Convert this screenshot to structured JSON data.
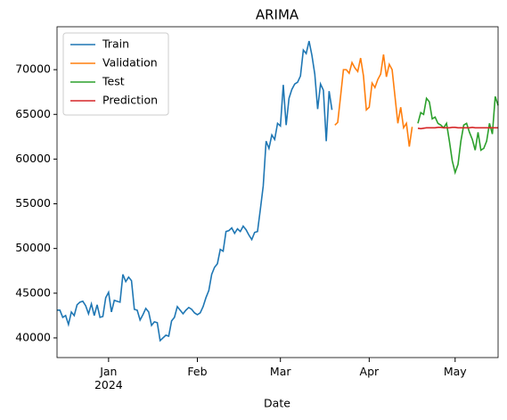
{
  "chart_data": {
    "type": "line",
    "title": "ARIMA",
    "x_label": "Date",
    "xlim": [
      19705,
      19859
    ],
    "xticks": [
      {
        "value": 19723,
        "label": "Jan\n2024"
      },
      {
        "value": 19754,
        "label": "Feb"
      },
      {
        "value": 19783,
        "label": "Mar"
      },
      {
        "value": 19814,
        "label": "Apr"
      },
      {
        "value": 19844,
        "label": "May"
      }
    ],
    "ylim": [
      37800,
      74800
    ],
    "yticks": [
      40000,
      45000,
      50000,
      55000,
      60000,
      65000,
      70000
    ],
    "grid": false,
    "legend": "upper left",
    "series": [
      {
        "name": "Train",
        "color": "#1f77b4",
        "start": 19705,
        "values": [
          43100,
          43100,
          42300,
          42500,
          41500,
          42900,
          42500,
          43700,
          44000,
          44100,
          43600,
          42700,
          43800,
          42500,
          43700,
          42300,
          42400,
          44500,
          45100,
          42900,
          44200,
          44100,
          44000,
          47100,
          46300,
          46800,
          46400,
          43200,
          43100,
          42000,
          42600,
          43300,
          42900,
          41400,
          41800,
          41700,
          39700,
          40000,
          40300,
          40200,
          41900,
          42300,
          43500,
          43100,
          42700,
          43100,
          43400,
          43200,
          42800,
          42600,
          42800,
          43500,
          44500,
          45300,
          47100,
          47900,
          48300,
          49900,
          49700,
          51900,
          52000,
          52300,
          51700,
          52200,
          51900,
          52500,
          52100,
          51500,
          51000,
          51800,
          51900,
          54400,
          57000,
          62000,
          61200,
          62700,
          62200,
          64000,
          63700,
          68300,
          63800,
          66800,
          67800,
          68400,
          68600,
          69300,
          72200,
          71800,
          73200,
          71600,
          69500,
          65600,
          68400,
          67700,
          62000,
          67600,
          65500
        ]
      },
      {
        "name": "Validation",
        "color": "#ff7f0e",
        "start": 19802,
        "values": [
          63800,
          64100,
          67000,
          70000,
          70000,
          69600,
          70800,
          70200,
          69800,
          71300,
          69300,
          65500,
          65800,
          68500,
          68000,
          68900,
          69500,
          71700,
          69200,
          70600,
          70000,
          67000,
          64000,
          65800,
          63500,
          64000,
          61400,
          63600
        ]
      },
      {
        "name": "Test",
        "color": "#2ca02c",
        "start": 19831,
        "values": [
          64000,
          65200,
          65000,
          66800,
          66400,
          64500,
          64700,
          64000,
          63800,
          63500,
          64000,
          62000,
          59800,
          58500,
          59400,
          62000,
          63800,
          64000,
          63000,
          62200,
          61000,
          63000,
          61000,
          61200,
          62000,
          64000,
          62800,
          67000,
          66000
        ]
      },
      {
        "name": "Prediction",
        "color": "#d62728",
        "start": 19831,
        "values": [
          63450,
          63400,
          63450,
          63500,
          63500,
          63500,
          63500,
          63550,
          63550,
          63500,
          63500,
          63500,
          63550,
          63550,
          63500,
          63500,
          63500,
          63500,
          63500,
          63550,
          63500,
          63500,
          63500,
          63500,
          63500,
          63500,
          63500,
          63500,
          63500
        ]
      }
    ]
  }
}
